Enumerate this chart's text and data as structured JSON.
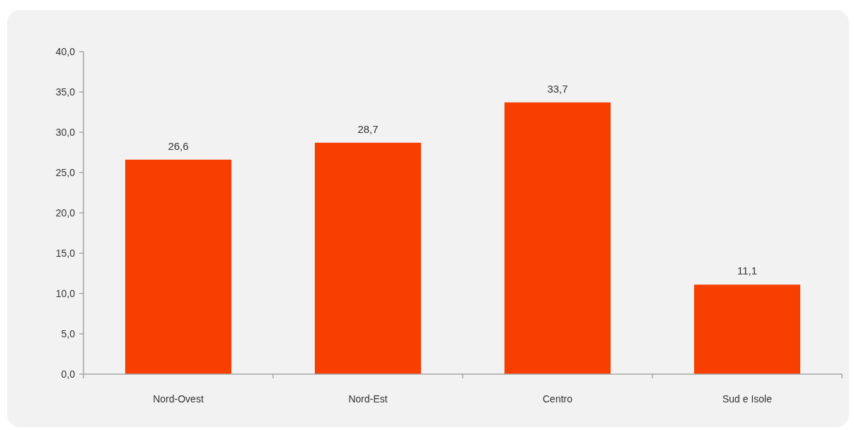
{
  "chart_data": {
    "type": "bar",
    "categories": [
      "Nord-Ovest",
      "Nord-Est",
      "Centro",
      "Sud e Isole"
    ],
    "values": [
      26.6,
      28.7,
      33.7,
      11.1
    ],
    "color": "#f74000",
    "value_labels": [
      "26,6",
      "28,7",
      "33,7",
      "11,1"
    ],
    "ylim": [
      0,
      40
    ],
    "yticks": [
      {
        "value": 0,
        "label": "0,0"
      },
      {
        "value": 5,
        "label": "5,0"
      },
      {
        "value": 10,
        "label": "10,0"
      },
      {
        "value": 15,
        "label": "15,0"
      },
      {
        "value": 20,
        "label": "20,0"
      },
      {
        "value": 25,
        "label": "25,0"
      },
      {
        "value": 30,
        "label": "30,0"
      },
      {
        "value": 35,
        "label": "35,0"
      },
      {
        "value": 40,
        "label": "40,0"
      }
    ],
    "grid": false
  }
}
